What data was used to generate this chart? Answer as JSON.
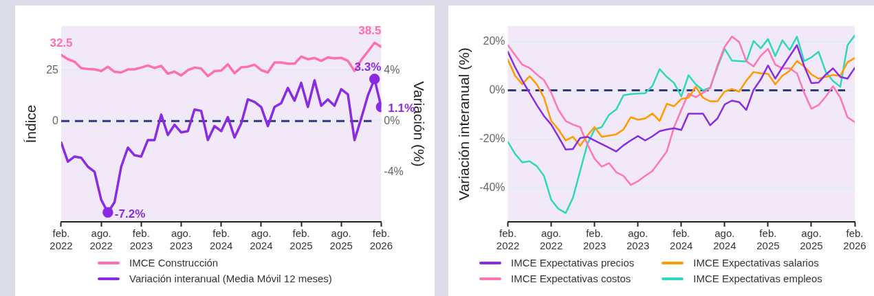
{
  "chart_data": [
    {
      "type": "line",
      "ylabel": "Índice",
      "y2label": "Variación (%)",
      "x": [
        "2022-02",
        "2022-03",
        "2022-04",
        "2022-05",
        "2022-06",
        "2022-07",
        "2022-08",
        "2022-09",
        "2022-10",
        "2022-11",
        "2022-12",
        "2023-01",
        "2023-02",
        "2023-03",
        "2023-04",
        "2023-05",
        "2023-06",
        "2023-07",
        "2023-08",
        "2023-09",
        "2023-10",
        "2023-11",
        "2023-12",
        "2024-01",
        "2024-02",
        "2024-03",
        "2024-04",
        "2024-05",
        "2024-06",
        "2024-07",
        "2024-08",
        "2024-09",
        "2024-10",
        "2024-11",
        "2024-12",
        "2025-01",
        "2025-02",
        "2025-03",
        "2025-04",
        "2025-05",
        "2025-06",
        "2025-07",
        "2025-08",
        "2025-09",
        "2025-10",
        "2025-11",
        "2025-12",
        "2026-01",
        "2026-02"
      ],
      "series": [
        {
          "name": "IMCE Construcción",
          "color": "#ff6eb0",
          "values": [
            32.5,
            30.4,
            29.2,
            26.0,
            25.6,
            25.4,
            24.6,
            26.7,
            24.2,
            23.9,
            25.4,
            25.4,
            26.3,
            27.3,
            26.1,
            27.1,
            23.3,
            24.3,
            22.4,
            25.0,
            26.3,
            25.8,
            22.1,
            24.6,
            24.8,
            27.9,
            23.5,
            26.4,
            26.7,
            27.7,
            25.0,
            23.9,
            28.8,
            28.8,
            28.2,
            28.2,
            31.7,
            30.4,
            31.0,
            29.6,
            31.3,
            30.8,
            31.1,
            29.6,
            24.6,
            30.0,
            34.2,
            38.5,
            36.5
          ],
          "value_labels": [
            "32.5",
            null,
            null,
            null,
            null,
            null,
            null,
            null,
            null,
            null,
            null,
            null,
            null,
            null,
            null,
            null,
            null,
            null,
            null,
            null,
            null,
            null,
            null,
            null,
            null,
            null,
            null,
            null,
            null,
            null,
            null,
            null,
            null,
            null,
            null,
            null,
            null,
            null,
            null,
            null,
            null,
            null,
            null,
            null,
            null,
            null,
            null,
            "38.5",
            null
          ]
        },
        {
          "name": "Variación interanual (Media Móvil 12 meses)",
          "color": "#8a2be2",
          "axis": "y2",
          "values": [
            -1.7,
            -3.2,
            -2.8,
            -2.9,
            -3.6,
            -4.0,
            -6.2,
            -7.2,
            -6.4,
            -3.6,
            -2.1,
            -2.7,
            -2.8,
            -1.5,
            -1.5,
            0.5,
            -1.1,
            -0.3,
            -0.9,
            -0.8,
            0.9,
            0.8,
            -1.5,
            -0.4,
            -0.8,
            0.3,
            -1.3,
            -0.2,
            1.7,
            1.5,
            1.1,
            -0.4,
            1.1,
            1.4,
            2.6,
            1.6,
            3.0,
            1.1,
            3.2,
            1.2,
            1.7,
            1.2,
            2.5,
            2.1,
            -1.5,
            0.2,
            2.0,
            3.3,
            1.1
          ]
        },
        {
          "type": "scatter",
          "color": "#8a2be2",
          "axis": "y2",
          "marker": "circle",
          "x": [
            "2022-09",
            "2026-01",
            "2026-02"
          ],
          "values": [
            -7.2,
            3.3,
            1.1
          ],
          "value_labels": [
            "-7.2%",
            "3.3%",
            "1.1%"
          ]
        }
      ],
      "xlim": [
        "2022-02",
        "2026-02"
      ],
      "xticks": [
        {
          "value": "2022-02",
          "label": "feb. 2022"
        },
        {
          "value": "2022-08",
          "label": "ago. 2022"
        },
        {
          "value": "2023-02",
          "label": "feb. 2023"
        },
        {
          "value": "2023-08",
          "label": "ago. 2023"
        },
        {
          "value": "2024-02",
          "label": "feb. 2024"
        },
        {
          "value": "2024-08",
          "label": "ago. 2024"
        },
        {
          "value": "2025-02",
          "label": "feb. 2025"
        },
        {
          "value": "2025-08",
          "label": "ago. 2025"
        },
        {
          "value": "2026-02",
          "label": "feb. 2026"
        }
      ],
      "ylim": [
        -49.6,
        46.7
      ],
      "yticks": [
        0,
        25
      ],
      "y2lim": [
        -7.94,
        7.47
      ],
      "y2ticks": [
        {
          "value": -4,
          "label": "-4%"
        },
        {
          "value": 0,
          "label": "0%"
        },
        {
          "value": 4,
          "label": "4%"
        }
      ],
      "ref_lines": [
        {
          "axis": "y",
          "value": 0,
          "color": "#2e3a87",
          "line_style": "dashed"
        }
      ],
      "grid": "y",
      "legend": "bottom"
    },
    {
      "type": "line",
      "ylabel": "Variación interanual (%)",
      "x": [
        "2022-02",
        "2022-03",
        "2022-04",
        "2022-05",
        "2022-06",
        "2022-07",
        "2022-08",
        "2022-09",
        "2022-10",
        "2022-11",
        "2022-12",
        "2023-01",
        "2023-02",
        "2023-03",
        "2023-04",
        "2023-05",
        "2023-06",
        "2023-07",
        "2023-08",
        "2023-09",
        "2023-10",
        "2023-11",
        "2023-12",
        "2024-01",
        "2024-02",
        "2024-03",
        "2024-04",
        "2024-05",
        "2024-06",
        "2024-07",
        "2024-08",
        "2024-09",
        "2024-10",
        "2024-11",
        "2024-12",
        "2025-01",
        "2025-02",
        "2025-03",
        "2025-04",
        "2025-05",
        "2025-06",
        "2025-07",
        "2025-08",
        "2025-09",
        "2025-10",
        "2025-11",
        "2025-12",
        "2026-01",
        "2026-02"
      ],
      "series": [
        {
          "name": "IMCE Expectativas precios",
          "color": "#8a2be2",
          "values": [
            15.8,
            9.5,
            4,
            -1,
            -6,
            -10.5,
            -14,
            -19,
            -24.2,
            -24,
            -19.5,
            -19,
            -20.5,
            -22,
            -23.5,
            -25,
            -22.5,
            -20.5,
            -18.7,
            -20.5,
            -18.8,
            -16.7,
            -16,
            -15.5,
            -16.2,
            -9.5,
            -9.5,
            -9.5,
            -14.3,
            -11.5,
            -5.8,
            -4.2,
            -4.8,
            -8,
            0.2,
            4.5,
            10.2,
            4.8,
            9.5,
            14,
            18.5,
            10,
            3,
            3.2,
            6.5,
            9,
            5.5,
            4.8,
            9.2
          ]
        },
        {
          "name": "IMCE Expectativas salarios",
          "color": "#ff9a00",
          "values": [
            12.5,
            6,
            2.5,
            5.8,
            2.5,
            -3,
            -12.5,
            -16,
            -20.5,
            -19,
            -22.7,
            -18.5,
            -15,
            -19,
            -18.5,
            -18,
            -16,
            -11,
            -12,
            -11.5,
            -9.5,
            -12.5,
            -5.5,
            -6.5,
            -3.5,
            -3,
            1.5,
            -3,
            -4.5,
            -4.5,
            -0.5,
            0.5,
            -0.5,
            4,
            7.5,
            7,
            6.8,
            2.5,
            6,
            8,
            12,
            9.8,
            6.5,
            4.8,
            5.5,
            6.3,
            6,
            11.5,
            13.2
          ]
        },
        {
          "name": "IMCE Expectativas costos",
          "color": "#ff75b5",
          "values": [
            18.5,
            14.5,
            10.5,
            9.2,
            6.5,
            4.2,
            -1,
            -8,
            -12.5,
            -14,
            -15,
            -22,
            -28,
            -31.2,
            -29.8,
            -33.5,
            -35,
            -38.7,
            -37.2,
            -35,
            -33,
            -29,
            -25,
            -15,
            -8,
            -1.3,
            -2.8,
            -1,
            1,
            10.2,
            17.8,
            22,
            19.8,
            12,
            9.8,
            14.2,
            17,
            10.5,
            9,
            9,
            7,
            -1,
            -7.5,
            -6,
            -2.5,
            1.7,
            -3,
            -11,
            -13
          ]
        },
        {
          "name": "IMCE Expectativas empleos",
          "color": "#2fd8b8",
          "values": [
            -21,
            -26,
            -29.5,
            -29,
            -31,
            -35,
            -44.8,
            -48.5,
            -50.2,
            -44,
            -33,
            -22,
            -16,
            -15,
            -10,
            -7.8,
            -2,
            -1.5,
            -1.3,
            -1.2,
            1.8,
            8.7,
            5.5,
            3,
            -2.5,
            6.2,
            2.5,
            0,
            1.2,
            9.5,
            17,
            12.2,
            12,
            11.8,
            20.2,
            17.2,
            21,
            14,
            20.5,
            16.5,
            22,
            12,
            13.5,
            15.8,
            7.5,
            3.8,
            1.5,
            18.5,
            22.5
          ]
        }
      ],
      "xlim": [
        "2022-02",
        "2026-02"
      ],
      "xticks": [
        {
          "value": "2022-02",
          "label": "feb. 2022"
        },
        {
          "value": "2022-08",
          "label": "ago. 2022"
        },
        {
          "value": "2023-02",
          "label": "feb. 2023"
        },
        {
          "value": "2023-08",
          "label": "ago. 2023"
        },
        {
          "value": "2024-02",
          "label": "feb. 2024"
        },
        {
          "value": "2024-08",
          "label": "ago. 2024"
        },
        {
          "value": "2025-02",
          "label": "feb. 2025"
        },
        {
          "value": "2025-08",
          "label": "ago. 2025"
        },
        {
          "value": "2026-02",
          "label": "feb. 2026"
        }
      ],
      "ylim": [
        -53.8,
        26.3
      ],
      "yticks": [
        {
          "value": -40,
          "label": "-40%"
        },
        {
          "value": -20,
          "label": "-20%"
        },
        {
          "value": 0,
          "label": "0%"
        },
        {
          "value": 20,
          "label": "20%"
        }
      ],
      "ref_lines": [
        {
          "axis": "y",
          "value": 0,
          "color": "#2e3a87",
          "line_style": "dashed"
        }
      ],
      "grid": "y",
      "legend": "bottom"
    }
  ]
}
